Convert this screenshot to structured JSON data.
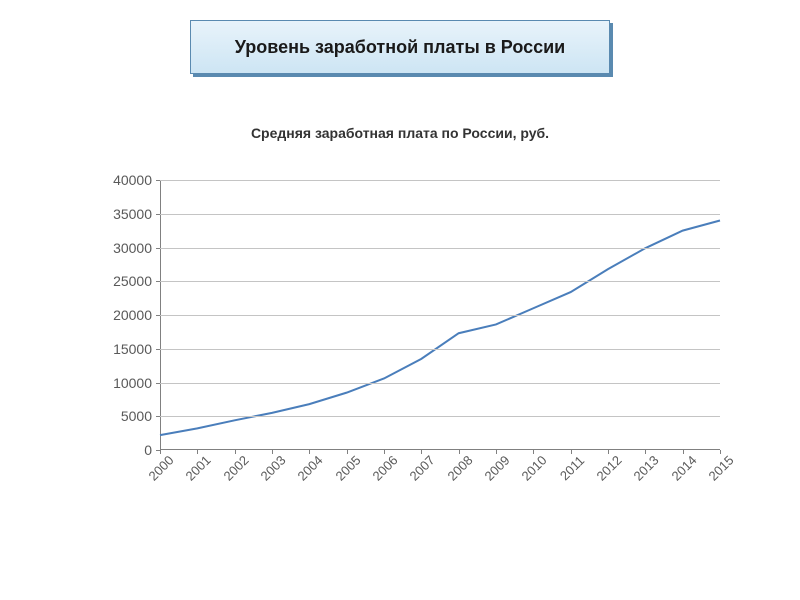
{
  "header": {
    "title": "Уровень заработной платы в России",
    "fontsize": 18,
    "box_bg_top": "#e8f3fa",
    "box_bg_bottom": "#cde5f4",
    "box_border": "#5a8ab0"
  },
  "chart": {
    "type": "line",
    "title": "Средняя заработная плата по России, руб.",
    "title_fontsize": 14,
    "categories": [
      "2000",
      "2001",
      "2002",
      "2003",
      "2004",
      "2005",
      "2006",
      "2007",
      "2008",
      "2009",
      "2010",
      "2011",
      "2012",
      "2013",
      "2014",
      "2015"
    ],
    "values": [
      2200,
      3200,
      4400,
      5500,
      6800,
      8500,
      10600,
      13500,
      17300,
      18600,
      21000,
      23400,
      26800,
      29900,
      32500,
      34000
    ],
    "line_color": "#4a7ebb",
    "line_width": 2,
    "ylim": [
      0,
      40000
    ],
    "ytick_step": 5000,
    "yticks": [
      0,
      5000,
      10000,
      15000,
      20000,
      25000,
      30000,
      35000,
      40000
    ],
    "axis_label_fontsize": 14,
    "x_label_fontsize": 13,
    "grid_color": "#c4c4c4",
    "axis_color": "#808080",
    "tick_color": "#808080",
    "label_color": "#595959",
    "background_color": "#ffffff",
    "x_label_rotation": -45
  }
}
